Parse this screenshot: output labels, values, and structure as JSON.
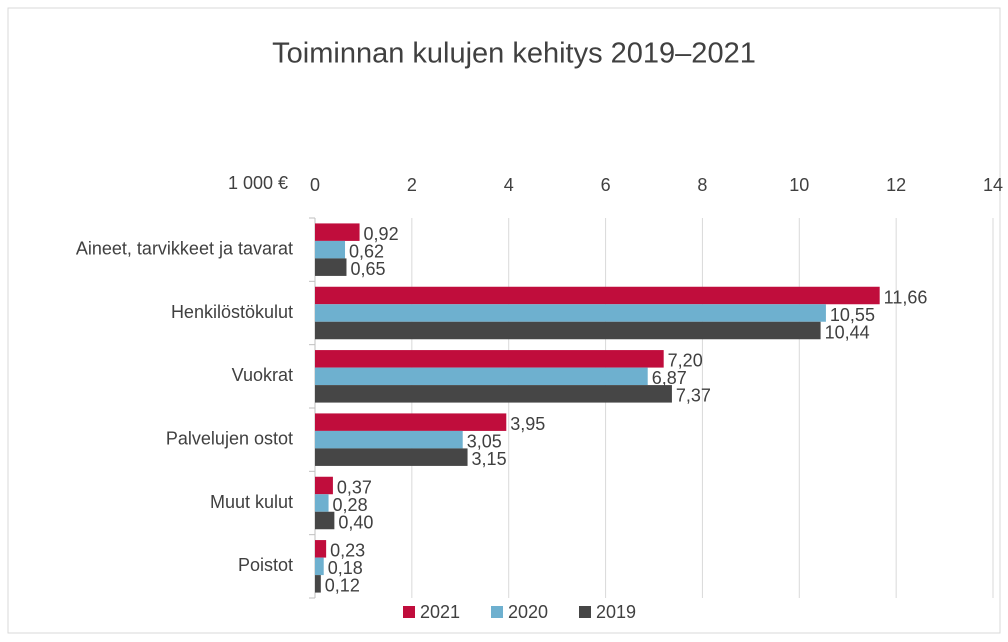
{
  "chart_data": {
    "type": "hbar",
    "title": "Toiminnan kulujen kehitys 2019–2021",
    "xlabel": "1 000 €",
    "categories": [
      "Aineet, tarvikkeet ja tavarat",
      "Henkilöstökulut",
      "Vuokrat",
      "Palvelujen ostot",
      "Muut kulut",
      "Poistot"
    ],
    "series": [
      {
        "name": "2021",
        "color": "#c00d3c",
        "values": [
          0.92,
          11.66,
          7.2,
          3.95,
          0.37,
          0.23
        ],
        "value_labels": [
          "0,92",
          "11,66",
          "7,20",
          "3,95",
          "0,37",
          "0,23"
        ]
      },
      {
        "name": "2020",
        "color": "#6eb0cf",
        "values": [
          0.62,
          10.55,
          6.87,
          3.05,
          0.28,
          0.18
        ],
        "value_labels": [
          "0,62",
          "10,55",
          "6,87",
          "3,05",
          "0,28",
          "0,18"
        ]
      },
      {
        "name": "2019",
        "color": "#464646",
        "values": [
          0.65,
          10.44,
          7.37,
          3.15,
          0.4,
          0.12
        ],
        "value_labels": [
          "0,65",
          "10,44",
          "7,37",
          "3,15",
          "0,40",
          "0,12"
        ]
      }
    ],
    "xlim": [
      0,
      14
    ],
    "xticks": [
      0,
      2,
      4,
      6,
      8,
      10,
      12,
      14
    ],
    "grid": true,
    "legend": "bottom"
  }
}
